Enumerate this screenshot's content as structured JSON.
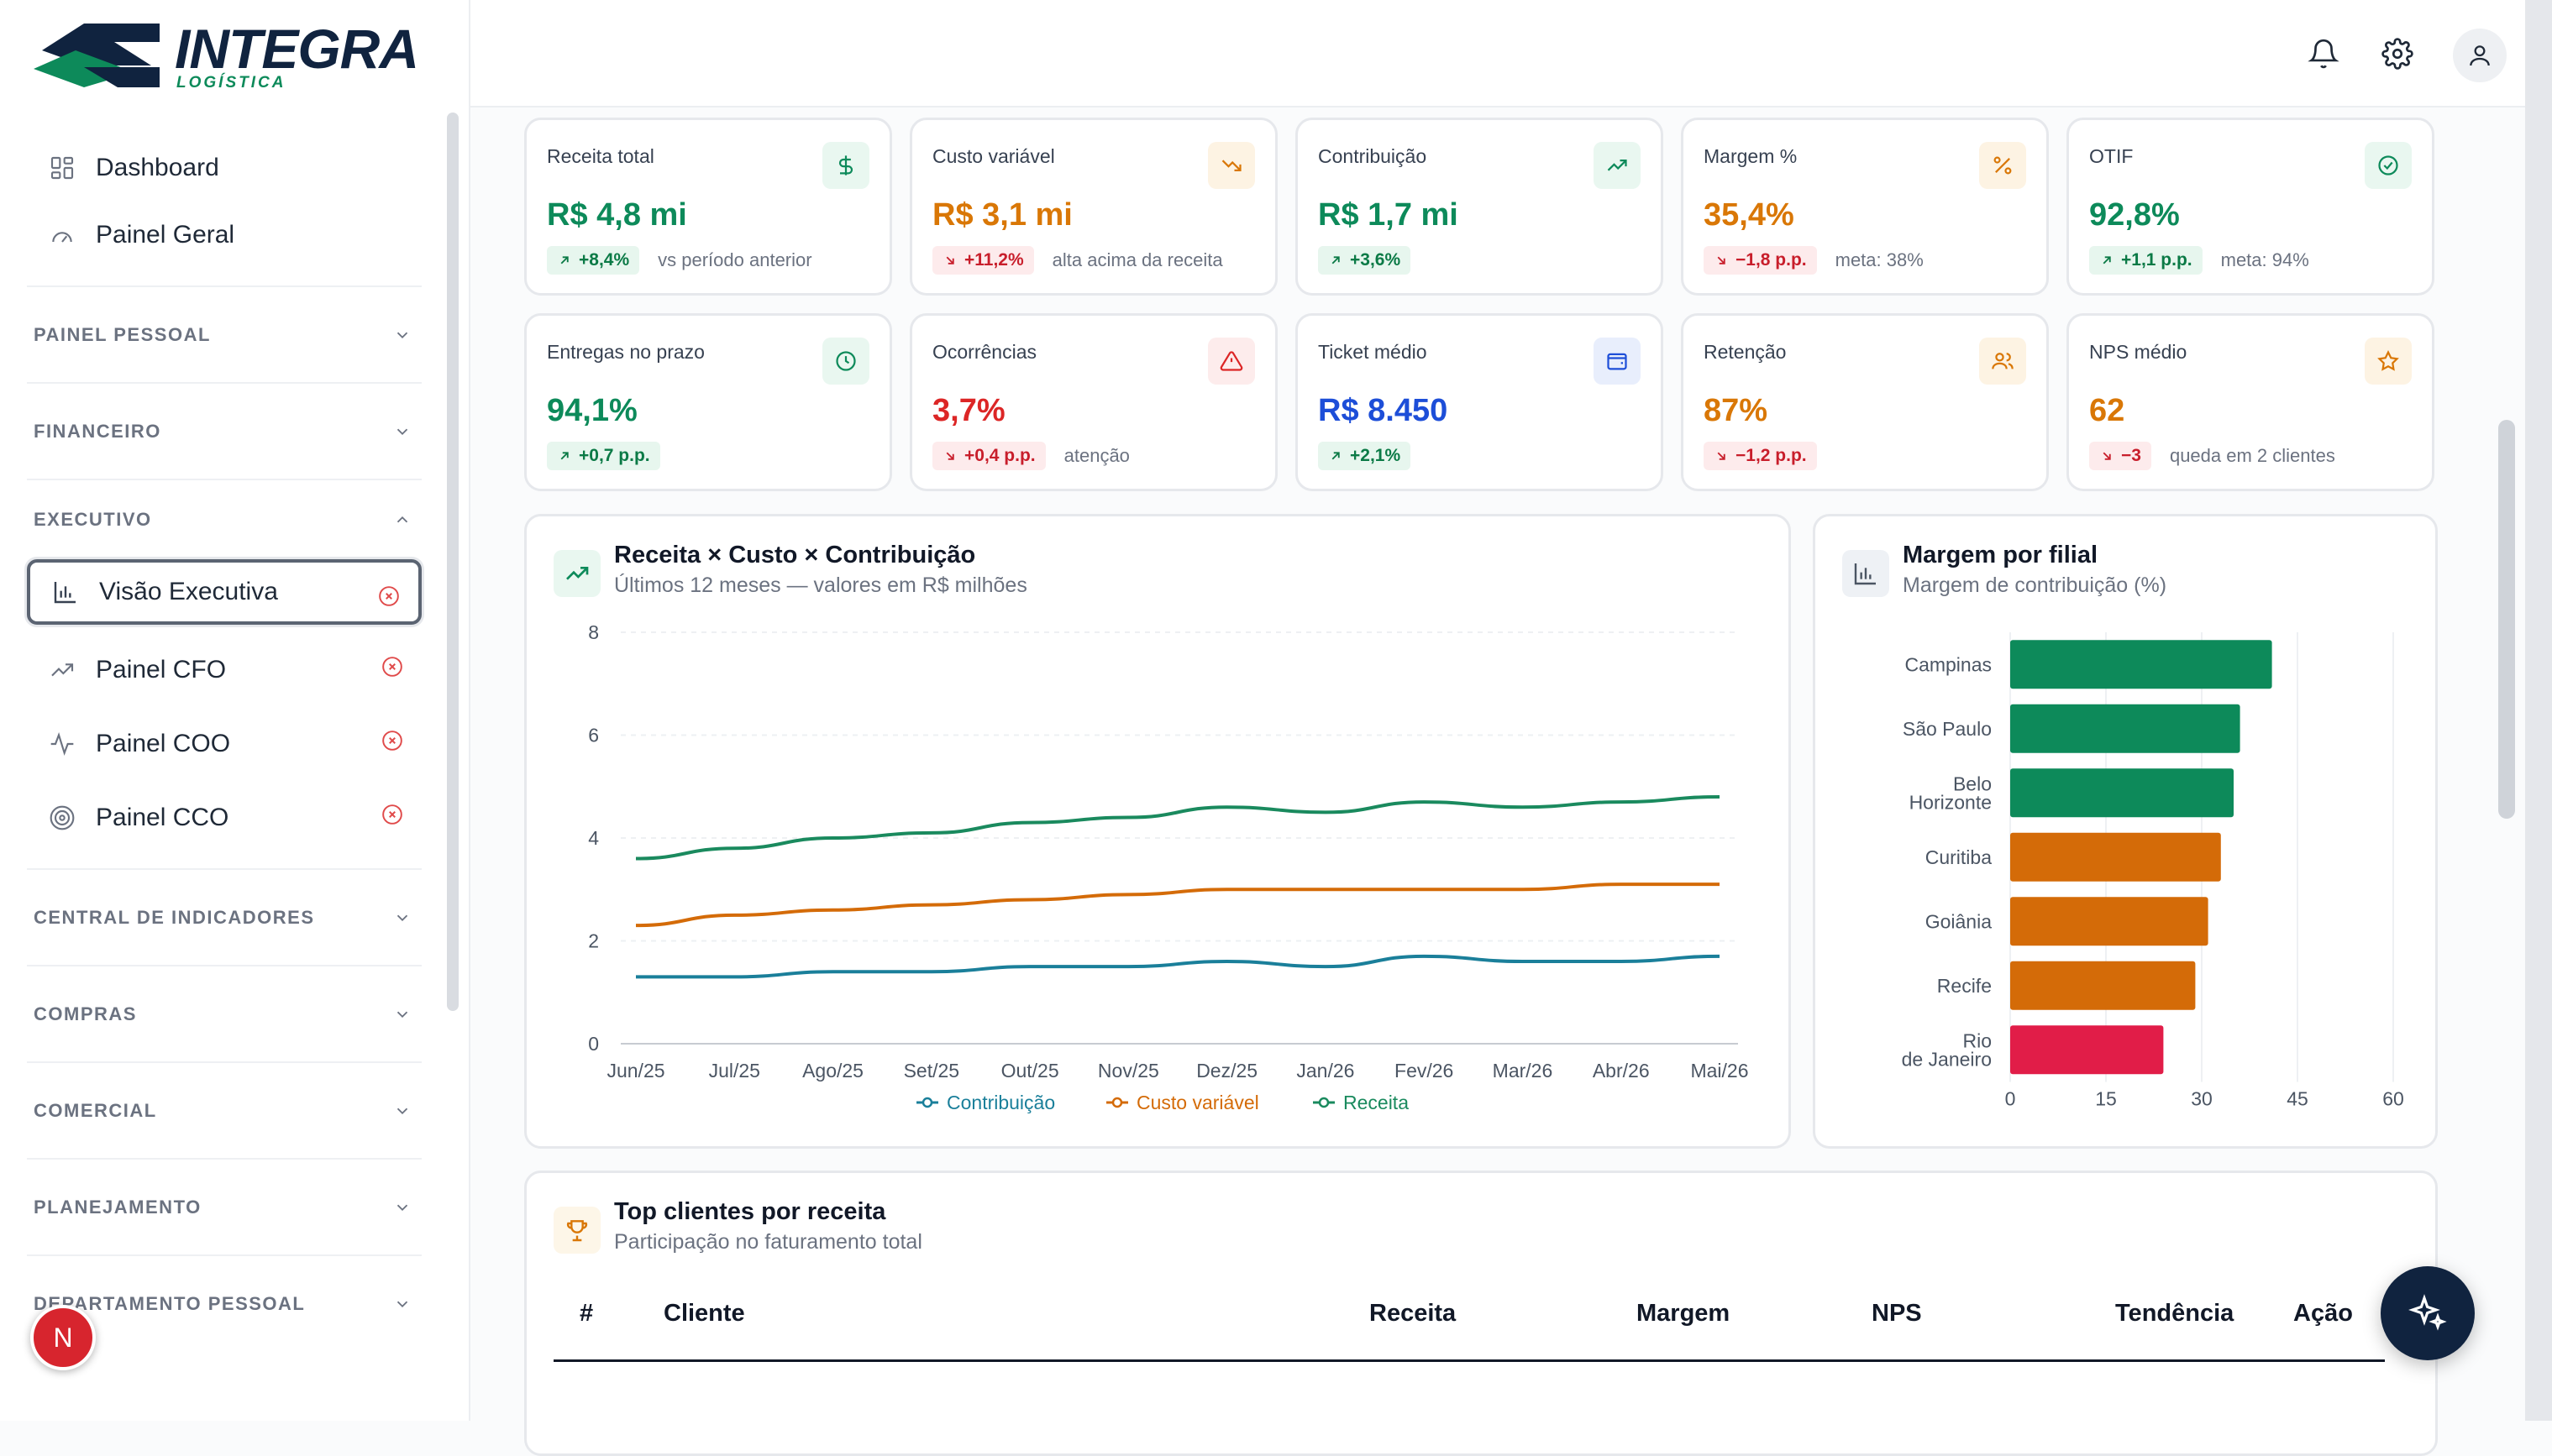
{
  "brand": {
    "name": "INTEGRA",
    "tagline": "LOGÍSTICA",
    "colors": {
      "navy": "#10233f",
      "green": "#0d8a5a"
    }
  },
  "sidebar": {
    "top_items": [
      {
        "label": "Dashboard",
        "icon": "grid-icon"
      },
      {
        "label": "Painel Geral",
        "icon": "gauge-icon"
      }
    ],
    "sections": [
      {
        "label": "PAINEL PESSOAL",
        "expanded": false
      },
      {
        "label": "FINANCEIRO",
        "expanded": false
      },
      {
        "label": "EXECUTIVO",
        "expanded": true
      },
      {
        "label": "CENTRAL DE INDICADORES",
        "expanded": false
      },
      {
        "label": "COMPRAS",
        "expanded": false
      },
      {
        "label": "COMERCIAL",
        "expanded": false
      },
      {
        "label": "PLANEJAMENTO",
        "expanded": false
      },
      {
        "label": "DEPARTAMENTO PESSOAL",
        "expanded": false
      }
    ],
    "executivo_items": [
      {
        "label": "Visão Executiva",
        "icon": "bar-chart-icon",
        "active": true
      },
      {
        "label": "Painel CFO",
        "icon": "trending-up-icon"
      },
      {
        "label": "Painel COO",
        "icon": "activity-icon"
      },
      {
        "label": "Painel CCO",
        "icon": "target-icon"
      }
    ],
    "badge": "N"
  },
  "topbar": {
    "icons": [
      "bell-icon",
      "gear-icon",
      "user-icon"
    ]
  },
  "kpis": [
    {
      "label": "Receita total",
      "value": "R$ 4,8 mi",
      "delta": "+8,4%",
      "dir": "up",
      "note": "vs período anterior",
      "icon": "dollar-icon",
      "color": "#0d8a5a"
    },
    {
      "label": "Custo variável",
      "value": "R$ 3,1 mi",
      "delta": "+11,2%",
      "dir": "down",
      "note": "alta acima da receita",
      "icon": "trending-down-icon",
      "color": "#d97706"
    },
    {
      "label": "Contribuição",
      "value": "R$ 1,7 mi",
      "delta": "+3,6%",
      "dir": "up",
      "note": "",
      "icon": "trending-up-icon",
      "color": "#0d8a5a"
    },
    {
      "label": "Margem %",
      "value": "35,4%",
      "delta": "−1,8 p.p.",
      "dir": "down",
      "note": "meta: 38%",
      "icon": "percent-icon",
      "color": "#d97706"
    },
    {
      "label": "OTIF",
      "value": "92,8%",
      "delta": "+1,1 p.p.",
      "dir": "up",
      "note": "meta: 94%",
      "icon": "check-circle-icon",
      "color": "#0d8a5a"
    },
    {
      "label": "Entregas no prazo",
      "value": "94,1%",
      "delta": "+0,7 p.p.",
      "dir": "up",
      "note": "",
      "icon": "clock-icon",
      "color": "#0d8a5a"
    },
    {
      "label": "Ocorrências",
      "value": "3,7%",
      "delta": "+0,4 p.p.",
      "dir": "down",
      "note": "atenção",
      "icon": "alert-triangle-icon",
      "color": "#dc2626"
    },
    {
      "label": "Ticket médio",
      "value": "R$ 8.450",
      "delta": "+2,1%",
      "dir": "up",
      "note": "",
      "icon": "wallet-icon",
      "color": "#1d4ed8"
    },
    {
      "label": "Retenção",
      "value": "87%",
      "delta": "−1,2 p.p.",
      "dir": "down",
      "note": "",
      "icon": "users-icon",
      "color": "#d97706"
    },
    {
      "label": "NPS médio",
      "value": "62",
      "delta": "−3",
      "dir": "down",
      "note": "queda em 2 clientes",
      "icon": "star-icon",
      "color": "#d97706"
    }
  ],
  "line_card": {
    "title": "Receita × Custo × Contribuição",
    "subtitle": "Últimos 12 meses — valores em R$ milhões",
    "icon": "trending-up-icon"
  },
  "bar_card": {
    "title": "Margem por filial",
    "subtitle": "Margem de contribuição (%)",
    "icon": "bar-chart-icon"
  },
  "chart_data": [
    {
      "type": "line",
      "title": "Receita × Custo × Contribuição",
      "x": [
        "Jun/25",
        "Jul/25",
        "Ago/25",
        "Set/25",
        "Out/25",
        "Nov/25",
        "Dez/25",
        "Jan/26",
        "Fev/26",
        "Mar/26",
        "Abr/26",
        "Mai/26"
      ],
      "ylim": [
        0,
        8
      ],
      "yticks": [
        0,
        2,
        4,
        6,
        8
      ],
      "series": [
        {
          "name": "Contribuição",
          "color": "#1a7f9a",
          "values": [
            1.3,
            1.3,
            1.4,
            1.4,
            1.5,
            1.5,
            1.6,
            1.5,
            1.7,
            1.6,
            1.6,
            1.7
          ]
        },
        {
          "name": "Custo variável",
          "color": "#d46b08",
          "values": [
            2.3,
            2.5,
            2.6,
            2.7,
            2.8,
            2.9,
            3.0,
            3.0,
            3.0,
            3.0,
            3.1,
            3.1
          ]
        },
        {
          "name": "Receita",
          "color": "#1a8a5e",
          "values": [
            3.6,
            3.8,
            4.0,
            4.1,
            4.3,
            4.4,
            4.6,
            4.5,
            4.7,
            4.6,
            4.7,
            4.8
          ]
        }
      ],
      "legend": "bottom"
    },
    {
      "type": "bar",
      "orientation": "horizontal",
      "title": "Margem por filial",
      "categories": [
        "Campinas",
        "São Paulo",
        "Belo Horizonte",
        "Curitiba",
        "Goiânia",
        "Recife",
        "Rio de Janeiro"
      ],
      "values": [
        41,
        36,
        35,
        33,
        31,
        29,
        24
      ],
      "colors": [
        "#0d8a5a",
        "#0d8a5a",
        "#0d8a5a",
        "#d46b08",
        "#d46b08",
        "#d46b08",
        "#e11d48"
      ],
      "xlim": [
        0,
        60
      ],
      "xticks": [
        0,
        15,
        30,
        45,
        60
      ]
    }
  ],
  "table_card": {
    "title": "Top clientes por receita",
    "subtitle": "Participação no faturamento total",
    "icon": "trophy-icon",
    "columns": [
      "#",
      "Cliente",
      "Receita",
      "Margem",
      "NPS",
      "Tendência",
      "Ação"
    ]
  },
  "fab": {
    "icon": "sparkles-icon"
  }
}
